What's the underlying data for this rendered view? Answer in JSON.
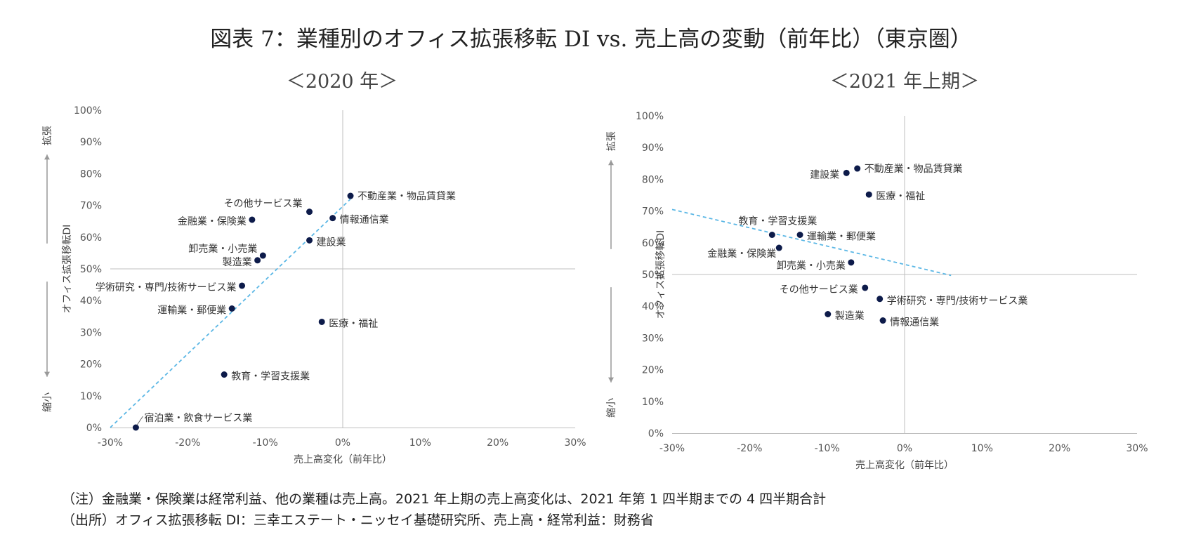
{
  "title": "図表 7：業種別のオフィス拡張移転 DI vs. 売上高の変動（前年比）（東京圏）",
  "notes": {
    "note": "（注）金融業・保険業は経常利益、他の業種は売上高。2021 年上期の売上高変化は、2021 年第 1 四半期までの 4 四半期合計",
    "source": "（出所）オフィス拡張移転 DI：三幸エステート・ニッセイ基礎研究所、売上高・経常利益：財務省"
  },
  "colors": {
    "point": "#0d1b4a",
    "trendline": "#5bb7e5",
    "axis": "#bfbfbf"
  },
  "chart_data": [
    {
      "type": "scatter",
      "subtitle": "＜2020 年＞",
      "xlabel": "売上高変化（前年比）",
      "ylabel": "オフィス拡張移転DI",
      "y_up_label": "拡張",
      "y_down_label": "縮小",
      "xlim": [
        -0.3,
        0.3
      ],
      "ylim": [
        0,
        1.0
      ],
      "x_ticks": [
        "-30%",
        "-20%",
        "-10%",
        "0%",
        "10%",
        "20%",
        "30%"
      ],
      "y_ticks": [
        "0%",
        "10%",
        "20%",
        "30%",
        "40%",
        "50%",
        "60%",
        "70%",
        "80%",
        "90%",
        "100%"
      ],
      "crosshair": {
        "x": 0,
        "y": 0.5
      },
      "trendline": {
        "style": "dashed",
        "from": [
          -0.3,
          0.0
        ],
        "to": [
          0.01,
          0.72
        ]
      },
      "points": [
        {
          "label": "不動産業・物品賃貸業",
          "x": 0.01,
          "y": 0.73
        },
        {
          "label": "その他サービス業",
          "x": -0.043,
          "y": 0.68
        },
        {
          "label": "情報通信業",
          "x": -0.013,
          "y": 0.66
        },
        {
          "label": "金融業・保険業",
          "x": -0.117,
          "y": 0.655
        },
        {
          "label": "建設業",
          "x": -0.043,
          "y": 0.59
        },
        {
          "label": "卸売業・小売業",
          "x": -0.103,
          "y": 0.542
        },
        {
          "label": "製造業",
          "x": -0.11,
          "y": 0.527
        },
        {
          "label": "学術研究・専門/技術サービス業",
          "x": -0.13,
          "y": 0.447
        },
        {
          "label": "運輸業・郵便業",
          "x": -0.143,
          "y": 0.375
        },
        {
          "label": "医療・福祉",
          "x": -0.027,
          "y": 0.333
        },
        {
          "label": "教育・学習支援業",
          "x": -0.153,
          "y": 0.167
        },
        {
          "label": "宿泊業・飲食サービス業",
          "x": -0.267,
          "y": 0.0
        }
      ]
    },
    {
      "type": "scatter",
      "subtitle": "＜2021 年上期＞",
      "xlabel": "売上高変化（前年比）",
      "ylabel": "オフィス拡張移転DI",
      "y_up_label": "拡張",
      "y_down_label": "縮小",
      "xlim": [
        -0.3,
        0.3
      ],
      "ylim": [
        0,
        1.0
      ],
      "x_ticks": [
        "-30%",
        "-20%",
        "-10%",
        "0%",
        "10%",
        "20%",
        "30%"
      ],
      "y_ticks": [
        "0%",
        "10%",
        "20%",
        "30%",
        "40%",
        "50%",
        "60%",
        "70%",
        "80%",
        "90%",
        "100%"
      ],
      "crosshair": {
        "x": 0,
        "y": 0.5
      },
      "trendline": {
        "style": "dashed",
        "from": [
          -0.3,
          0.705
        ],
        "to": [
          0.06,
          0.497
        ]
      },
      "points": [
        {
          "label": "不動産業・物品賃貸業",
          "x": -0.061,
          "y": 0.834
        },
        {
          "label": "建設業",
          "x": -0.075,
          "y": 0.82
        },
        {
          "label": "医療・福祉",
          "x": -0.046,
          "y": 0.752
        },
        {
          "label": "教育・学習支援業",
          "x": -0.171,
          "y": 0.625
        },
        {
          "label": "運輸業・郵便業",
          "x": -0.135,
          "y": 0.625
        },
        {
          "label": "金融業・保険業",
          "x": -0.162,
          "y": 0.584
        },
        {
          "label": "卸売業・小売業",
          "x": -0.069,
          "y": 0.538
        },
        {
          "label": "その他サービス業",
          "x": -0.051,
          "y": 0.458
        },
        {
          "label": "学術研究・専門/技術サービス業",
          "x": -0.032,
          "y": 0.423
        },
        {
          "label": "製造業",
          "x": -0.099,
          "y": 0.375
        },
        {
          "label": "情報通信業",
          "x": -0.028,
          "y": 0.355
        }
      ]
    }
  ]
}
